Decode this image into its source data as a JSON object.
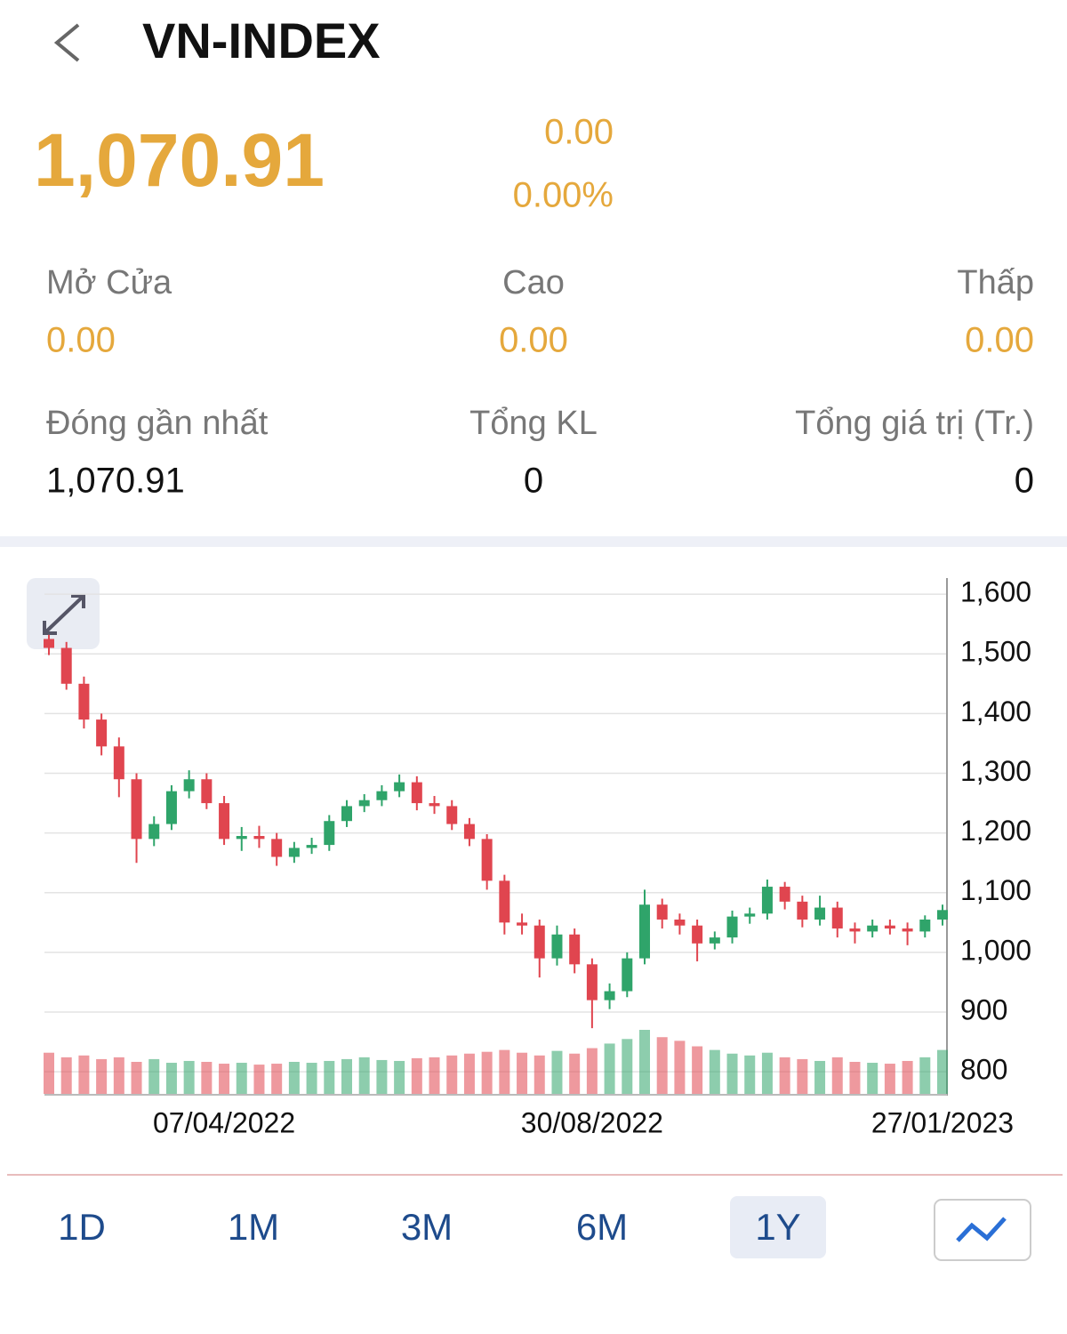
{
  "header": {
    "title": "VN-INDEX"
  },
  "quote": {
    "price": "1,070.91",
    "change": "0.00",
    "change_pct": "0.00%"
  },
  "stats": [
    [
      {
        "label": "Mở Cửa",
        "value": "0.00"
      },
      {
        "label": "Cao",
        "value": "0.00"
      },
      {
        "label": "Thấp",
        "value": "0.00"
      }
    ],
    [
      {
        "label": "Đóng gần nhất",
        "value": "1,070.91"
      },
      {
        "label": "Tổng KL",
        "value": "0"
      },
      {
        "label": "Tổng giá trị (Tr.)",
        "value": "0"
      }
    ]
  ],
  "periods": [
    {
      "label": "1D"
    },
    {
      "label": "1M"
    },
    {
      "label": "3M"
    },
    {
      "label": "6M"
    },
    {
      "label": "1Y",
      "active": true
    }
  ],
  "chart_data": {
    "type": "candlestick",
    "categories": [
      null,
      null,
      null,
      null,
      null,
      null,
      null,
      null,
      null,
      null,
      "07/04/2022",
      null,
      null,
      null,
      null,
      null,
      null,
      null,
      null,
      null,
      null,
      null,
      null,
      null,
      null,
      null,
      null,
      null,
      null,
      null,
      null,
      "30/08/2022",
      null,
      null,
      null,
      null,
      null,
      null,
      null,
      null,
      null,
      null,
      null,
      null,
      null,
      null,
      null,
      null,
      null,
      null,
      null,
      "27/01/2023"
    ],
    "open": [
      1525,
      1510,
      1450,
      1390,
      1345,
      1290,
      1190,
      1215,
      1270,
      1290,
      1250,
      1190,
      1195,
      1190,
      1160,
      1175,
      1180,
      1220,
      1245,
      1255,
      1270,
      1285,
      1250,
      1245,
      1215,
      1190,
      1120,
      1050,
      1045,
      990,
      1030,
      980,
      920,
      935,
      990,
      1080,
      1055,
      1045,
      1015,
      1025,
      1060,
      1065,
      1110,
      1085,
      1055,
      1075,
      1040,
      1035,
      1045,
      1040,
      1035,
      1055
    ],
    "high": [
      1532,
      1520,
      1462,
      1400,
      1360,
      1300,
      1228,
      1280,
      1305,
      1300,
      1262,
      1210,
      1212,
      1200,
      1185,
      1192,
      1230,
      1255,
      1265,
      1280,
      1298,
      1295,
      1262,
      1255,
      1225,
      1198,
      1130,
      1065,
      1055,
      1045,
      1040,
      990,
      948,
      1000,
      1105,
      1090,
      1065,
      1055,
      1035,
      1070,
      1075,
      1122,
      1118,
      1095,
      1095,
      1085,
      1050,
      1055,
      1055,
      1050,
      1062,
      1080
    ],
    "low": [
      1498,
      1440,
      1375,
      1330,
      1260,
      1150,
      1178,
      1205,
      1258,
      1240,
      1180,
      1170,
      1175,
      1145,
      1150,
      1165,
      1170,
      1210,
      1235,
      1245,
      1260,
      1238,
      1232,
      1205,
      1178,
      1105,
      1030,
      1030,
      958,
      978,
      965,
      873,
      905,
      925,
      980,
      1040,
      1030,
      985,
      1005,
      1015,
      1048,
      1055,
      1072,
      1042,
      1045,
      1025,
      1015,
      1025,
      1030,
      1012,
      1025,
      1045
    ],
    "close": [
      1510,
      1450,
      1390,
      1345,
      1290,
      1190,
      1215,
      1270,
      1290,
      1250,
      1190,
      1195,
      1190,
      1160,
      1175,
      1180,
      1220,
      1245,
      1255,
      1270,
      1285,
      1250,
      1245,
      1215,
      1190,
      1120,
      1050,
      1045,
      990,
      1030,
      980,
      920,
      935,
      990,
      1080,
      1055,
      1045,
      1015,
      1025,
      1060,
      1065,
      1110,
      1085,
      1055,
      1075,
      1040,
      1035,
      1045,
      1040,
      1035,
      1055,
      1070.91
    ],
    "volume": [
      45,
      40,
      42,
      38,
      40,
      35,
      38,
      34,
      36,
      35,
      33,
      34,
      32,
      33,
      35,
      34,
      36,
      38,
      40,
      37,
      36,
      39,
      40,
      42,
      44,
      46,
      48,
      45,
      42,
      47,
      44,
      50,
      55,
      60,
      70,
      62,
      58,
      52,
      48,
      44,
      42,
      45,
      40,
      38,
      36,
      40,
      35,
      34,
      33,
      36,
      40,
      48
    ],
    "up_color": "#2fa46a",
    "down_color": "#e0454f",
    "ylim": [
      763,
      1627
    ],
    "yticks": [
      {
        "value": 1600,
        "label": "1,600"
      },
      {
        "value": 1500,
        "label": "1,500"
      },
      {
        "value": 1400,
        "label": "1,400"
      },
      {
        "value": 1300,
        "label": "1,300"
      },
      {
        "value": 1200,
        "label": "1,200"
      },
      {
        "value": 1100,
        "label": "1,100"
      },
      {
        "value": 1000,
        "label": "1,000"
      },
      900,
      800
    ],
    "grid": true
  }
}
